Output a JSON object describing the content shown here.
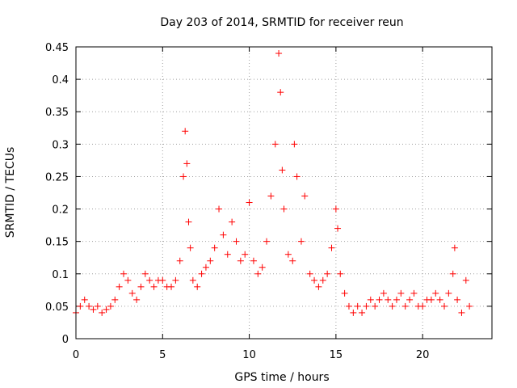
{
  "chart_data": {
    "type": "scatter",
    "title": "Day 203 of 2014, SRMTID for receiver reun",
    "xlabel": "GPS time / hours",
    "ylabel": "SRMTID / TECUs",
    "xlim": [
      0,
      24
    ],
    "ylim": [
      0,
      0.45
    ],
    "xticks": [
      0,
      5,
      10,
      15,
      20
    ],
    "xtick_labels": [
      "0",
      "5",
      "10",
      "15",
      "20"
    ],
    "yticks": [
      0,
      0.05,
      0.1,
      0.15,
      0.2,
      0.25,
      0.3,
      0.35,
      0.4,
      0.45
    ],
    "ytick_labels": [
      "0",
      "0.05",
      "0.1",
      "0.15",
      "0.2",
      "0.25",
      "0.3",
      "0.35",
      "0.4",
      "0.45"
    ],
    "grid": true,
    "marker": "+",
    "series": [
      {
        "name": "reun",
        "color": "#ff0000",
        "x": [
          0.0,
          0.25,
          0.5,
          0.75,
          1.0,
          1.25,
          1.5,
          1.75,
          2.0,
          2.25,
          2.5,
          2.75,
          3.0,
          3.25,
          3.5,
          3.75,
          4.0,
          4.25,
          4.5,
          4.75,
          5.0,
          5.25,
          5.5,
          5.75,
          6.0,
          6.2,
          6.3,
          6.4,
          6.5,
          6.6,
          6.75,
          7.0,
          7.25,
          7.5,
          7.75,
          8.0,
          8.25,
          8.5,
          8.75,
          9.0,
          9.25,
          9.5,
          9.75,
          10.0,
          10.25,
          10.5,
          10.75,
          11.0,
          11.25,
          11.5,
          11.7,
          11.8,
          11.9,
          12.0,
          12.25,
          12.5,
          12.6,
          12.75,
          13.0,
          13.2,
          13.5,
          13.75,
          14.0,
          14.25,
          14.5,
          14.75,
          15.0,
          15.1,
          15.25,
          15.5,
          15.75,
          16.0,
          16.25,
          16.5,
          16.75,
          17.0,
          17.25,
          17.5,
          17.75,
          18.0,
          18.25,
          18.5,
          18.75,
          19.0,
          19.25,
          19.5,
          19.75,
          20.0,
          20.25,
          20.5,
          20.75,
          21.0,
          21.25,
          21.5,
          21.75,
          21.85,
          22.0,
          22.25,
          22.5,
          22.7
        ],
        "y": [
          0.04,
          0.05,
          0.06,
          0.05,
          0.045,
          0.05,
          0.04,
          0.045,
          0.05,
          0.06,
          0.08,
          0.1,
          0.09,
          0.07,
          0.06,
          0.08,
          0.1,
          0.09,
          0.08,
          0.09,
          0.09,
          0.08,
          0.08,
          0.09,
          0.12,
          0.25,
          0.32,
          0.27,
          0.18,
          0.14,
          0.09,
          0.08,
          0.1,
          0.11,
          0.12,
          0.14,
          0.2,
          0.16,
          0.13,
          0.18,
          0.15,
          0.12,
          0.13,
          0.21,
          0.12,
          0.1,
          0.11,
          0.15,
          0.22,
          0.3,
          0.44,
          0.38,
          0.26,
          0.2,
          0.13,
          0.12,
          0.3,
          0.25,
          0.15,
          0.22,
          0.1,
          0.09,
          0.08,
          0.09,
          0.1,
          0.14,
          0.2,
          0.17,
          0.1,
          0.07,
          0.05,
          0.04,
          0.05,
          0.04,
          0.05,
          0.06,
          0.05,
          0.06,
          0.07,
          0.06,
          0.05,
          0.06,
          0.07,
          0.05,
          0.06,
          0.07,
          0.05,
          0.05,
          0.06,
          0.06,
          0.07,
          0.06,
          0.05,
          0.07,
          0.1,
          0.14,
          0.06,
          0.04,
          0.09,
          0.05
        ]
      }
    ]
  }
}
